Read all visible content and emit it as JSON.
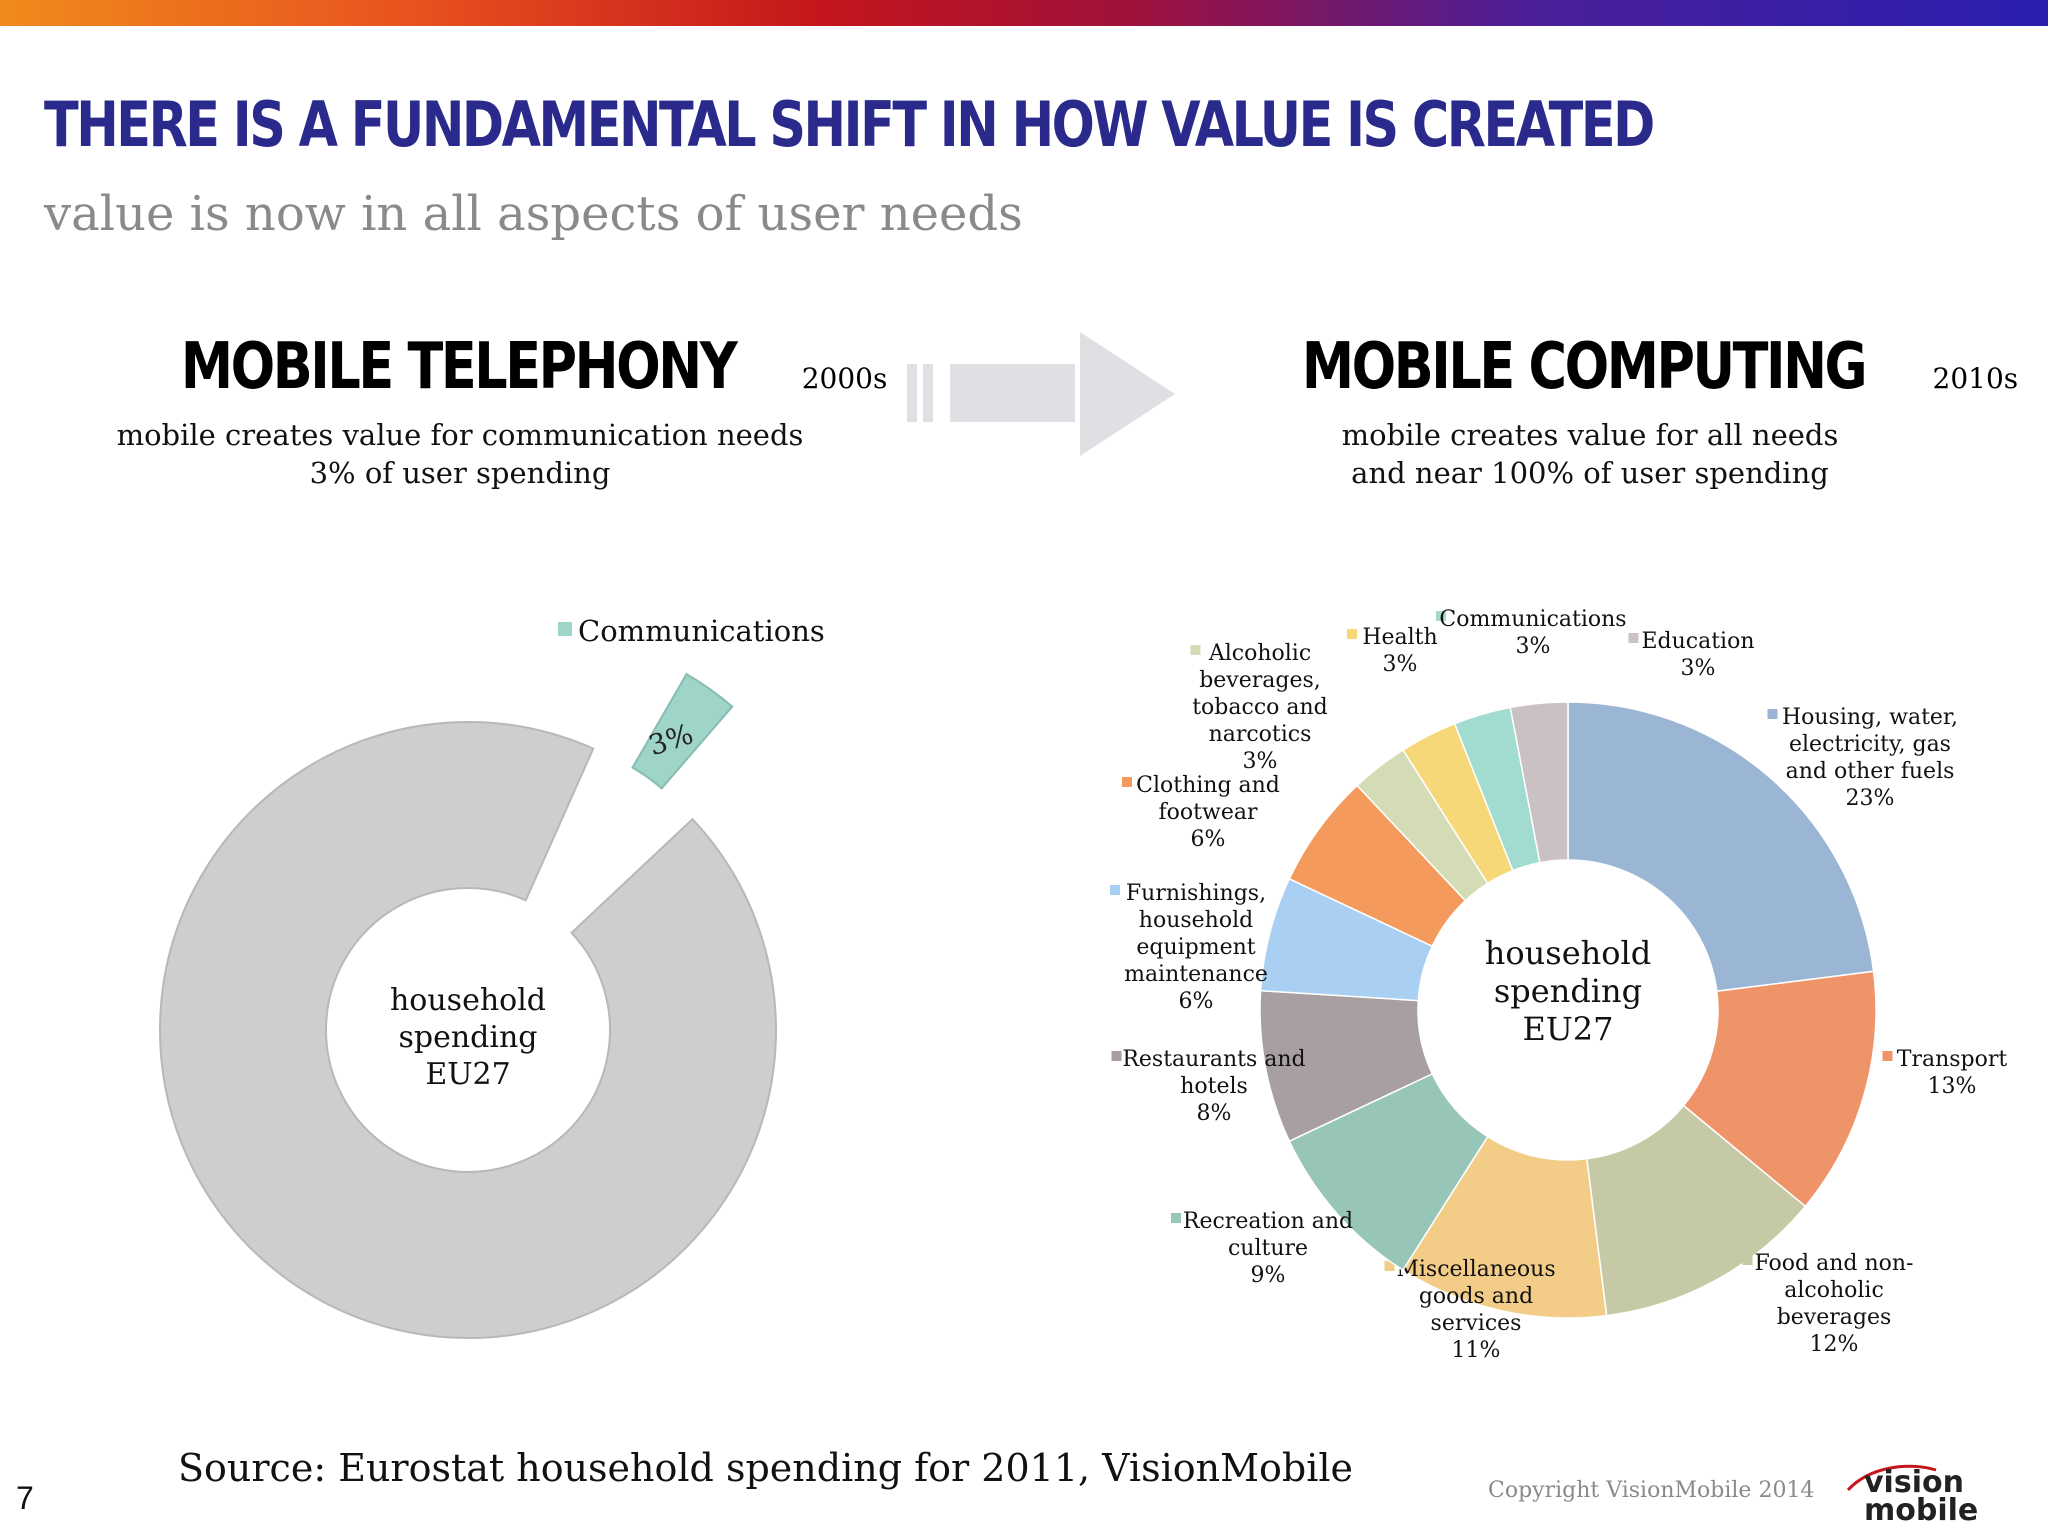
{
  "slide": {
    "title": "THERE IS A FUNDAMENTAL SHIFT IN HOW VALUE IS CREATED",
    "subtitle": "value is now in all aspects of user needs",
    "page_number": "7",
    "source": "Source: Eurostat household spending for 2011, VisionMobile",
    "copyright": "Copyright VisionMobile 2014",
    "logo_text": [
      "vision",
      "mobile"
    ]
  },
  "left_section": {
    "heading": "MOBILE TELEPHONY",
    "era": "2000s",
    "line1": "mobile creates value for communication needs",
    "line2": "3% of user spending"
  },
  "right_section": {
    "heading": "MOBILE COMPUTING",
    "era": "2010s",
    "line1": "mobile creates value for all needs",
    "line2": "and near 100% of user spending"
  },
  "colors": {
    "title_blue": "#2a2a8c",
    "gray_ring": "#cfcdd0",
    "teal": "#9fd4c8"
  },
  "chart_data": [
    {
      "type": "pie",
      "variant": "donut",
      "center_label": [
        "household",
        "spending",
        "EU27"
      ],
      "slices": [
        {
          "label": "Communications",
          "value": 3,
          "value_label": "3%",
          "color": "#9fd4c8",
          "exploded": true,
          "in_legend": true
        },
        {
          "label": "",
          "value": 97,
          "value_label": "",
          "color": "#cfcdd0",
          "exploded": false,
          "in_legend": false
        }
      ]
    },
    {
      "type": "pie",
      "variant": "donut",
      "center_label": [
        "household",
        "spending",
        "EU27"
      ],
      "slices": [
        {
          "label": "Housing, water, electricity, gas and other fuels",
          "label_lines": [
            "Housing, water,",
            "electricity, gas",
            "and other fuels"
          ],
          "value": 23,
          "value_label": "23%",
          "color": "#9bb6d4"
        },
        {
          "label": "Transport",
          "label_lines": [
            "Transport"
          ],
          "value": 13,
          "value_label": "13%",
          "color": "#ef9468"
        },
        {
          "label": "Food and non-alcoholic beverages",
          "label_lines": [
            "Food and non-",
            "alcoholic",
            "beverages"
          ],
          "value": 12,
          "value_label": "12%",
          "color": "#c6c9a5"
        },
        {
          "label": "Miscellaneous goods and services",
          "label_lines": [
            "Miscellaneous",
            "goods and",
            "services"
          ],
          "value": 11,
          "value_label": "11%",
          "color": "#f3cc88"
        },
        {
          "label": "Recreation and culture",
          "label_lines": [
            "Recreation and",
            "culture"
          ],
          "value": 9,
          "value_label": "9%",
          "color": "#97c6b9"
        },
        {
          "label": "Restaurants and hotels",
          "label_lines": [
            "Restaurants and",
            "hotels"
          ],
          "value": 8,
          "value_label": "8%",
          "color": "#a8a0a0"
        },
        {
          "label": "Furnishings, household equipment maintenance",
          "label_lines": [
            "Furnishings,",
            "household",
            "equipment",
            "maintenance"
          ],
          "value": 6,
          "value_label": "6%",
          "color": "#a9d0f3"
        },
        {
          "label": "Clothing and footwear",
          "label_lines": [
            "Clothing and",
            "footwear"
          ],
          "value": 6,
          "value_label": "6%",
          "color": "#f49a5c"
        },
        {
          "label": "Alcoholic beverages, tobacco and narcotics",
          "label_lines": [
            "Alcoholic",
            "beverages,",
            "tobacco and",
            "narcotics"
          ],
          "value": 3,
          "value_label": "3%",
          "color": "#d4dcb6"
        },
        {
          "label": "Health",
          "label_lines": [
            "Health"
          ],
          "value": 3,
          "value_label": "3%",
          "color": "#f7d878"
        },
        {
          "label": "Communications",
          "label_lines": [
            "Communications"
          ],
          "value": 3,
          "value_label": "3%",
          "color": "#a2dcd0"
        },
        {
          "label": "Education",
          "label_lines": [
            "Education"
          ],
          "value": 3,
          "value_label": "3%",
          "color": "#c9c1c3"
        }
      ]
    }
  ]
}
